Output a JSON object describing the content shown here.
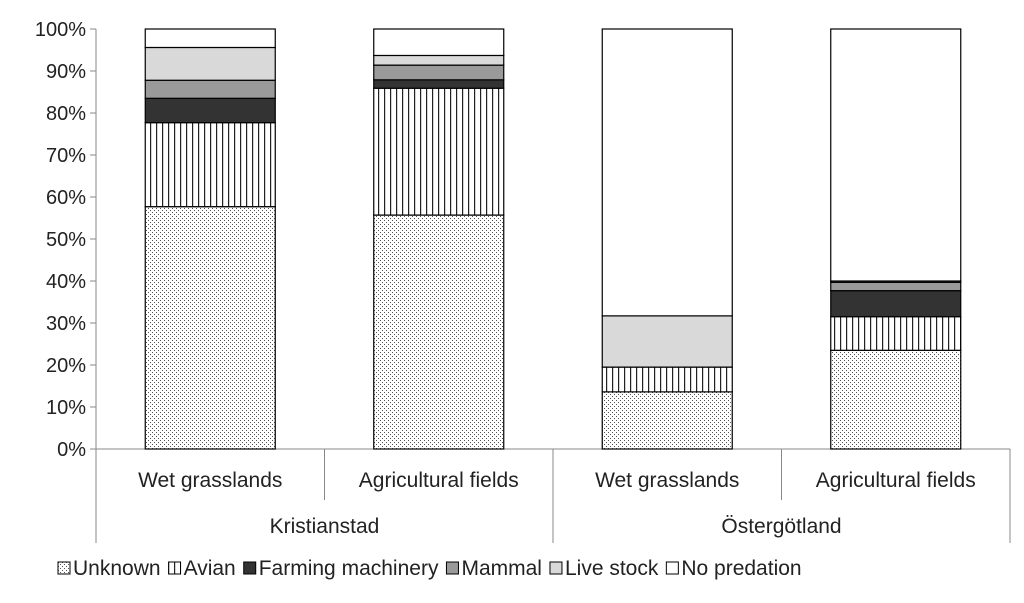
{
  "chart_data": {
    "type": "bar",
    "stacked": true,
    "normalized_percent": true,
    "title": "",
    "xlabel": "",
    "ylabel": "",
    "ylim": [
      0,
      100
    ],
    "y_ticks": [
      "0%",
      "10%",
      "20%",
      "30%",
      "40%",
      "50%",
      "60%",
      "70%",
      "80%",
      "90%",
      "100%"
    ],
    "groups": [
      {
        "label": "Kristianstad",
        "categories": [
          "Wet grasslands",
          "Agricultural fields"
        ]
      },
      {
        "label": "Östergötland",
        "categories": [
          "Wet grasslands",
          "Agricultural fields"
        ]
      }
    ],
    "categories": [
      "Wet grasslands",
      "Agricultural fields",
      "Wet grasslands",
      "Agricultural fields"
    ],
    "series": [
      {
        "name": "Unknown",
        "pattern": "dots",
        "values": [
          57.7,
          55.7,
          13.6,
          23.5
        ]
      },
      {
        "name": "Avian",
        "pattern": "vertical-lines",
        "values": [
          20.0,
          30.2,
          5.9,
          8.0
        ]
      },
      {
        "name": "Farming machinery",
        "pattern": "solid",
        "color": "#333333",
        "values": [
          5.8,
          2.0,
          0.0,
          6.2
        ]
      },
      {
        "name": "Mammal",
        "pattern": "solid",
        "color": "#9a9a9a",
        "values": [
          4.3,
          3.5,
          0.0,
          2.0
        ]
      },
      {
        "name": "Live stock",
        "pattern": "solid",
        "color": "#d9d9d9",
        "values": [
          7.8,
          2.3,
          12.2,
          0.3
        ]
      },
      {
        "name": "No predation",
        "pattern": "solid",
        "color": "#ffffff",
        "values": [
          4.4,
          6.3,
          68.3,
          60.0
        ]
      }
    ],
    "legend_position": "bottom",
    "grid": false
  }
}
